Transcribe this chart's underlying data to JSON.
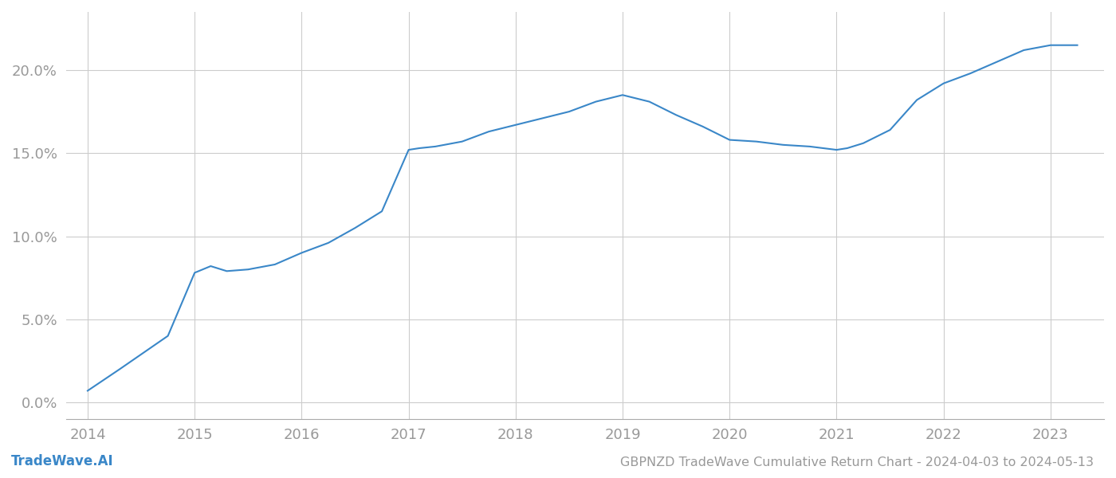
{
  "x_data": [
    2014.0,
    2014.3,
    2014.75,
    2015.0,
    2015.15,
    2015.3,
    2015.5,
    2015.75,
    2016.0,
    2016.25,
    2016.5,
    2016.75,
    2017.0,
    2017.1,
    2017.25,
    2017.5,
    2017.75,
    2018.0,
    2018.25,
    2018.5,
    2018.75,
    2019.0,
    2019.25,
    2019.5,
    2019.75,
    2020.0,
    2020.25,
    2020.5,
    2020.75,
    2021.0,
    2021.1,
    2021.25,
    2021.5,
    2021.75,
    2022.0,
    2022.25,
    2022.5,
    2022.75,
    2023.0,
    2023.25
  ],
  "y_data": [
    0.007,
    0.02,
    0.04,
    0.078,
    0.082,
    0.079,
    0.08,
    0.083,
    0.09,
    0.096,
    0.105,
    0.115,
    0.152,
    0.153,
    0.154,
    0.157,
    0.163,
    0.167,
    0.171,
    0.175,
    0.181,
    0.185,
    0.181,
    0.173,
    0.166,
    0.158,
    0.157,
    0.155,
    0.154,
    0.152,
    0.153,
    0.156,
    0.164,
    0.182,
    0.192,
    0.198,
    0.205,
    0.212,
    0.215,
    0.215
  ],
  "title": "GBPNZD TradeWave Cumulative Return Chart - 2024-04-03 to 2024-05-13",
  "watermark": "TradeWave.AI",
  "line_color": "#3a87c8",
  "background_color": "#ffffff",
  "grid_color": "#cccccc",
  "axis_label_color": "#999999",
  "x_ticks": [
    2014,
    2015,
    2016,
    2017,
    2018,
    2019,
    2020,
    2021,
    2022,
    2023
  ],
  "y_tick_vals": [
    0.0,
    0.05,
    0.1,
    0.15,
    0.2
  ],
  "y_tick_labels": [
    "0.0%",
    "5.0%",
    "10.0%",
    "15.0%",
    "20.0%"
  ],
  "xlim": [
    2013.8,
    2023.5
  ],
  "ylim": [
    -0.01,
    0.235
  ]
}
